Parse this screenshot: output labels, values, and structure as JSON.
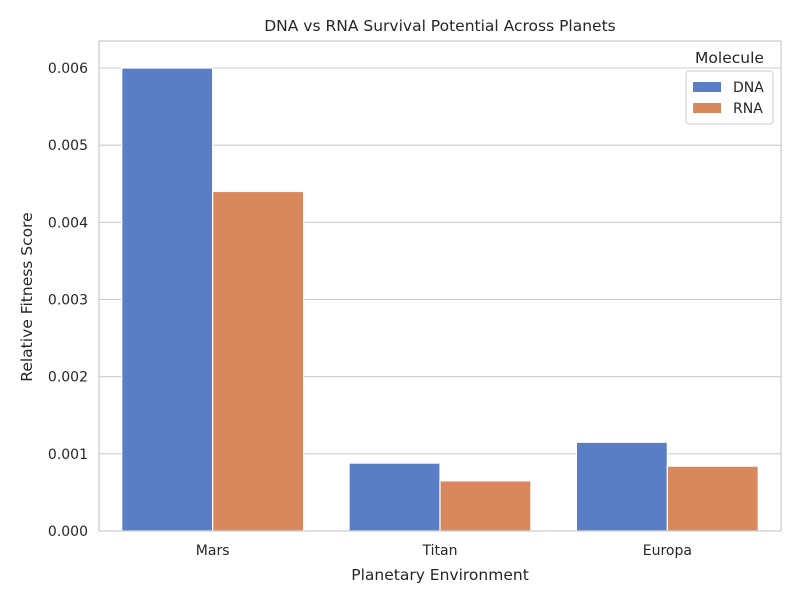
{
  "chart_data": {
    "type": "bar",
    "title": "DNA vs RNA Survival Potential Across Planets",
    "xlabel": "Planetary Environment",
    "ylabel": "Relative Fitness Score",
    "categories": [
      "Mars",
      "Titan",
      "Europa"
    ],
    "series": [
      {
        "name": "DNA",
        "values": [
          0.006,
          0.00088,
          0.00115
        ],
        "color": "#5a7ec6"
      },
      {
        "name": "RNA",
        "values": [
          0.0044,
          0.00065,
          0.00084
        ],
        "color": "#d9885d"
      }
    ],
    "ylim": [
      0,
      0.00635
    ],
    "yticks": [
      0.0,
      0.001,
      0.002,
      0.003,
      0.004,
      0.005,
      0.006
    ],
    "ytick_labels": [
      "0.000",
      "0.001",
      "0.002",
      "0.003",
      "0.004",
      "0.005",
      "0.006"
    ],
    "grid": true,
    "legend": {
      "title": "Molecule",
      "position": "top-right"
    }
  }
}
